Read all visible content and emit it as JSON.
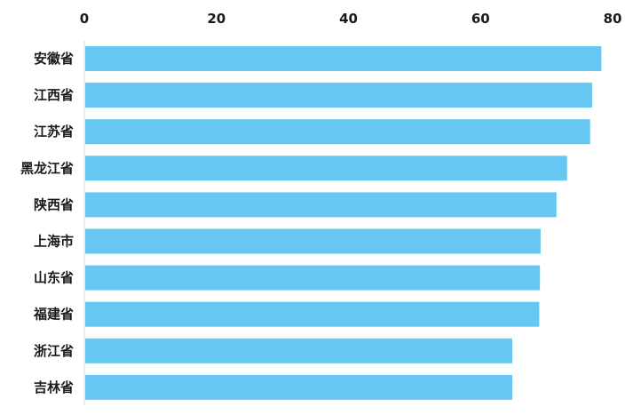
{
  "chart_data": {
    "type": "bar",
    "orientation": "horizontal",
    "categories": [
      "安徽省",
      "江西省",
      "江苏省",
      "黑龙江省",
      "陕西省",
      "上海市",
      "山东省",
      "福建省",
      "浙江省",
      "吉林省"
    ],
    "values": [
      78.3,
      76.9,
      76.6,
      73.1,
      71.5,
      69.1,
      69.0,
      68.9,
      64.8,
      64.8
    ],
    "xlim": [
      0,
      80
    ],
    "xticks": [
      "0",
      "20",
      "40",
      "60",
      "80"
    ],
    "axis_position": "top",
    "grid": false,
    "legend": "none",
    "title": "",
    "xlabel": "",
    "ylabel": "",
    "colors": {
      "bar": "#66c8f2",
      "axis_line": "#d9d9d9",
      "text": "#1a1a1a"
    }
  }
}
